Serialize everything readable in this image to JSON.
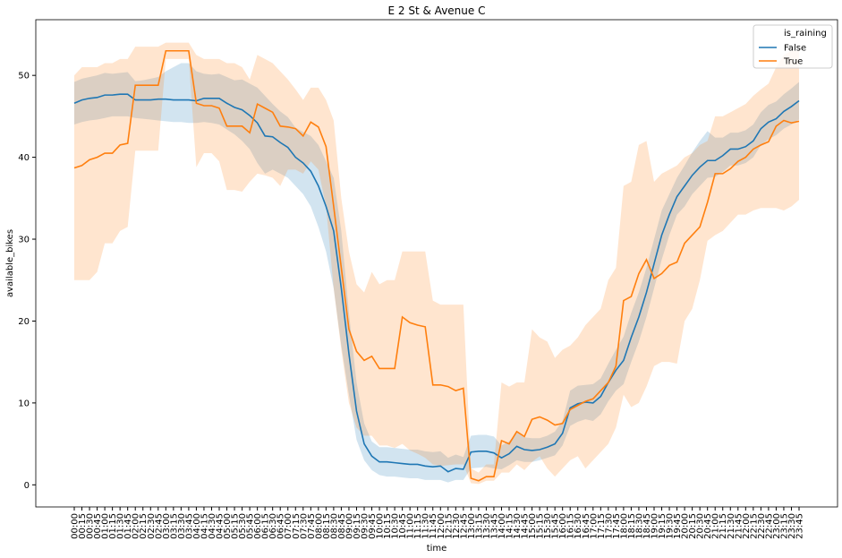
{
  "chart_data": {
    "type": "line",
    "title": "E 2 St & Avenue C",
    "x_label": "time",
    "y_label": "available_bikes",
    "legend_title": "is_raining",
    "legend": "upper right",
    "categories": [
      "00:00",
      "00:15",
      "00:30",
      "00:45",
      "01:00",
      "01:15",
      "01:30",
      "01:45",
      "02:00",
      "02:15",
      "02:30",
      "02:45",
      "03:00",
      "03:15",
      "03:30",
      "03:45",
      "04:00",
      "04:15",
      "04:30",
      "04:45",
      "05:00",
      "05:15",
      "05:30",
      "05:45",
      "06:00",
      "06:15",
      "06:30",
      "06:45",
      "07:00",
      "07:15",
      "07:30",
      "07:45",
      "08:00",
      "08:15",
      "08:30",
      "08:45",
      "09:00",
      "09:15",
      "09:30",
      "09:45",
      "10:00",
      "10:15",
      "10:30",
      "10:45",
      "11:00",
      "11:15",
      "11:30",
      "11:45",
      "12:00",
      "12:15",
      "12:30",
      "12:45",
      "13:00",
      "13:15",
      "13:30",
      "13:45",
      "14:00",
      "14:15",
      "14:30",
      "14:45",
      "15:00",
      "15:15",
      "15:30",
      "15:45",
      "16:00",
      "16:15",
      "16:30",
      "16:45",
      "17:00",
      "17:15",
      "17:30",
      "17:45",
      "18:00",
      "18:15",
      "18:30",
      "18:45",
      "19:00",
      "19:15",
      "19:30",
      "19:45",
      "20:00",
      "20:15",
      "20:30",
      "20:45",
      "21:00",
      "21:15",
      "21:30",
      "21:45",
      "22:00",
      "22:15",
      "22:30",
      "22:45",
      "23:00",
      "23:15",
      "23:30",
      "23:45"
    ],
    "series": [
      {
        "name": "False",
        "color": "#1f77b4",
        "values": [
          46.6,
          47,
          47.2,
          47.3,
          47.6,
          47.6,
          47.7,
          47.7,
          47,
          47,
          47,
          47.1,
          47.1,
          47,
          47,
          47,
          46.9,
          47.2,
          47.2,
          47.2,
          46.6,
          46.1,
          45.8,
          45.1,
          44.2,
          42.6,
          42.5,
          41.8,
          41.2,
          40,
          39.3,
          38.3,
          36.5,
          34,
          31,
          24,
          16,
          9,
          5,
          3.5,
          2.8,
          2.8,
          2.7,
          2.6,
          2.5,
          2.5,
          2.3,
          2.2,
          2.3,
          1.6,
          2,
          1.9,
          4,
          4.1,
          4.1,
          3.9,
          3.3,
          3.8,
          4.7,
          4.3,
          4.2,
          4.3,
          4.6,
          5,
          6.3,
          9.4,
          9.9,
          10.1,
          10,
          10.8,
          12.5,
          14,
          15.2,
          18,
          20.5,
          23.5,
          27,
          30.5,
          33,
          35.2,
          36.5,
          37.8,
          38.8,
          39.6,
          39.6,
          40.2,
          41,
          41,
          41.3,
          42,
          43.5,
          44.3,
          44.7,
          45.6,
          46.2,
          46.9
        ],
        "ci_lower": [
          44,
          44.3,
          44.5,
          44.6,
          44.8,
          45,
          45,
          45,
          44.8,
          44.7,
          44.6,
          44.5,
          44.4,
          44.3,
          44.3,
          44.2,
          44.2,
          44.3,
          44.2,
          44,
          43.4,
          42.8,
          42,
          41,
          39.3,
          38,
          38.5,
          38,
          37.5,
          36.5,
          35.5,
          34,
          31.5,
          28.5,
          24,
          17,
          11,
          5.5,
          3,
          1.8,
          1.2,
          1,
          1,
          0.9,
          0.8,
          0.8,
          0.6,
          0.6,
          0.6,
          0.3,
          0.6,
          0.6,
          2,
          2.1,
          2.2,
          2,
          1.9,
          2.4,
          3,
          2.8,
          2.8,
          3,
          3.3,
          3.6,
          4.8,
          7.2,
          7.7,
          8,
          7.8,
          8.6,
          10.2,
          11.5,
          12.3,
          15,
          17.5,
          20.5,
          24,
          27.5,
          30.5,
          33,
          34,
          35.5,
          36.5,
          37.5,
          37.6,
          38.2,
          39,
          39,
          39.3,
          40,
          41.5,
          42.2,
          42.7,
          43.5,
          44,
          44.6
        ],
        "ci_upper": [
          49.2,
          49.6,
          49.8,
          50,
          50.3,
          50.2,
          50.3,
          50.4,
          49.3,
          49.4,
          49.6,
          49.8,
          50.5,
          51,
          51.5,
          51.5,
          50.5,
          50.2,
          50.1,
          50.2,
          49.8,
          49.4,
          49.5,
          49,
          48.5,
          47.5,
          46.5,
          45.6,
          44.9,
          43.6,
          43.1,
          42.6,
          41.5,
          39.5,
          37.5,
          31,
          21,
          12.5,
          7.5,
          5.3,
          4.6,
          4.6,
          4.5,
          4.4,
          4.3,
          4.3,
          4.1,
          4,
          4.1,
          3.3,
          3.7,
          3.4,
          6,
          6.1,
          6.1,
          5.9,
          4.8,
          5.3,
          6.4,
          5.8,
          5.7,
          5.7,
          6,
          6.5,
          7.8,
          11.5,
          12.1,
          12.2,
          12.3,
          13,
          14.8,
          16.5,
          18.1,
          21,
          23.5,
          26.5,
          30,
          33.5,
          35.5,
          37.5,
          39,
          40.6,
          42,
          43.2,
          42.4,
          42.4,
          43,
          43,
          43.3,
          44,
          45.5,
          46.4,
          46.8,
          47.7,
          48.4,
          49.2
        ]
      },
      {
        "name": "True",
        "color": "#ff7f0e",
        "values": [
          38.7,
          39,
          39.7,
          40,
          40.5,
          40.5,
          41.5,
          41.7,
          48.8,
          48.8,
          48.8,
          48.8,
          53,
          53,
          53,
          53,
          46.6,
          46.3,
          46.3,
          46,
          43.8,
          43.8,
          43.8,
          43,
          46.5,
          46,
          45.5,
          43.8,
          43.7,
          43.5,
          42.6,
          44.3,
          43.7,
          41.3,
          34,
          26.5,
          19,
          16.3,
          15.2,
          15.7,
          14.2,
          14.2,
          14.2,
          20.5,
          19.8,
          19.5,
          19.3,
          12.2,
          12.2,
          12,
          11.5,
          11.8,
          0.8,
          0.5,
          1,
          1,
          5.4,
          5,
          6.5,
          5.9,
          8,
          8.3,
          7.9,
          7.3,
          7.5,
          9.2,
          9.7,
          10.2,
          10.5,
          11.5,
          12.5,
          14.5,
          22.5,
          23,
          25.8,
          27.5,
          25.2,
          25.8,
          26.8,
          27.2,
          29.5,
          30.5,
          31.5,
          34.5,
          38,
          38,
          38.6,
          39.5,
          40,
          41,
          41.5,
          41.9,
          43.8,
          44.5,
          44.2,
          44.4
        ],
        "ci_lower": [
          25,
          25,
          25,
          26,
          29.5,
          29.5,
          31,
          31.5,
          40.8,
          40.8,
          40.8,
          40.8,
          52,
          52,
          52,
          52,
          38.8,
          40.5,
          40.5,
          39.5,
          36,
          36,
          35.8,
          37,
          38,
          37.8,
          37.5,
          36.5,
          38.5,
          38.5,
          38,
          39.5,
          38.5,
          34,
          24,
          16.5,
          10,
          7,
          6,
          6,
          4.8,
          4.8,
          4.5,
          5,
          4.2,
          3.8,
          3.3,
          2.5,
          2.3,
          2.4,
          2.5,
          2.5,
          0.2,
          0.1,
          0.5,
          0.5,
          1.5,
          1.5,
          2.5,
          1.8,
          2.8,
          3.5,
          2,
          1,
          2,
          3,
          3.5,
          2,
          3,
          4,
          5,
          7,
          11,
          9.5,
          10,
          12,
          14.5,
          15,
          15,
          14.8,
          20,
          21.5,
          25,
          29.8,
          30.5,
          31,
          32,
          33,
          33,
          33.5,
          33.8,
          33.8,
          33.8,
          33.5,
          34,
          34.8
        ],
        "ci_upper": [
          50,
          51,
          51,
          51,
          51.5,
          51.5,
          52,
          52,
          53.5,
          53.5,
          53.5,
          53.5,
          54,
          54,
          54,
          54,
          52.5,
          52,
          52,
          52,
          51.5,
          51.5,
          51,
          49.5,
          52.5,
          52,
          51.5,
          50.5,
          49.5,
          48.3,
          47,
          48.5,
          48.5,
          47,
          44.5,
          35,
          28.5,
          24.5,
          23.5,
          26,
          24.5,
          25,
          25,
          28.5,
          28.5,
          28.5,
          28.5,
          22.5,
          22,
          22,
          22,
          22,
          2,
          1.5,
          2.5,
          2.5,
          12.5,
          12,
          12.5,
          12.5,
          19,
          18,
          17.5,
          15.5,
          16.5,
          17,
          18,
          19.5,
          20.5,
          21.5,
          25,
          26.5,
          36.5,
          37,
          41.5,
          42,
          37,
          38,
          38.5,
          39,
          40,
          40.5,
          41.5,
          42,
          45,
          45,
          45.5,
          46,
          46.5,
          47.5,
          48.3,
          49,
          51,
          52.5,
          53,
          53
        ]
      }
    ],
    "ylim": [
      -2.7,
      56.8
    ],
    "yticks": [
      0,
      10,
      20,
      30,
      40,
      50
    ]
  }
}
